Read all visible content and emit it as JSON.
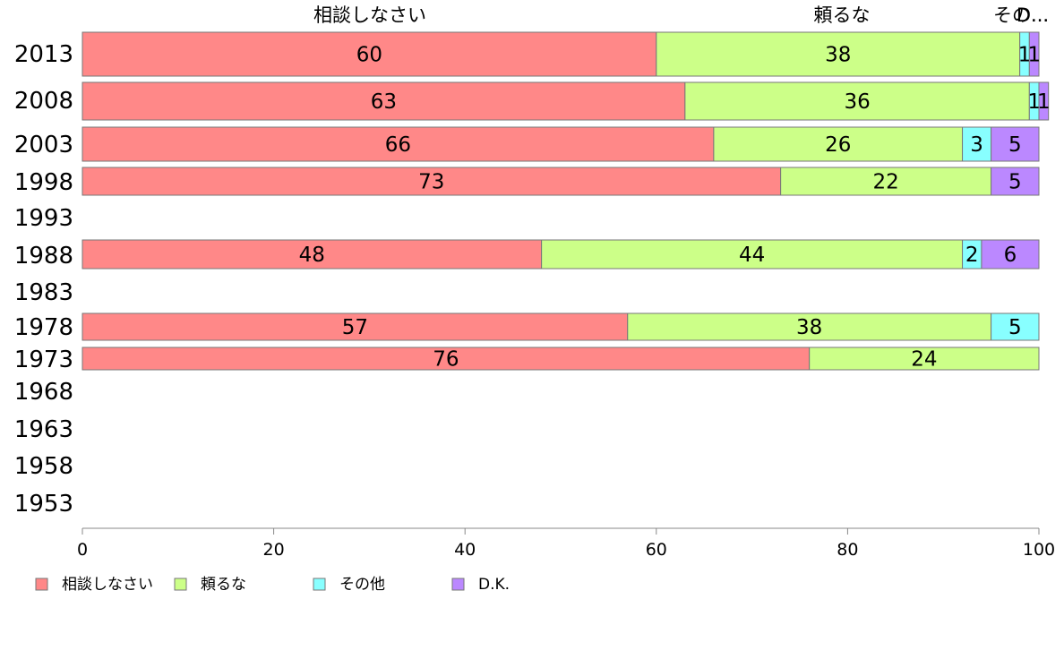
{
  "chart_data": {
    "type": "bar",
    "orientation": "horizontal",
    "stacked": true,
    "categories": [
      "2013",
      "2008",
      "2003",
      "1998",
      "1993",
      "1988",
      "1983",
      "1978",
      "1973",
      "1968",
      "1963",
      "1958",
      "1953"
    ],
    "series": [
      {
        "name": "相談しなさい",
        "color": "#ff8888",
        "values": [
          60,
          63,
          66,
          73,
          null,
          48,
          null,
          57,
          76,
          null,
          null,
          null,
          null
        ]
      },
      {
        "name": "頼るな",
        "color": "#ccff88",
        "values": [
          38,
          36,
          26,
          22,
          null,
          44,
          null,
          38,
          24,
          null,
          null,
          null,
          null
        ]
      },
      {
        "name": "その他",
        "color": "#88ffff",
        "values": [
          1,
          1,
          3,
          0,
          null,
          2,
          null,
          5,
          0,
          null,
          null,
          null,
          null
        ]
      },
      {
        "name": "D.K.",
        "color": "#bb88ff",
        "values": [
          1,
          1,
          5,
          5,
          null,
          6,
          null,
          0,
          0,
          null,
          null,
          null,
          null
        ]
      }
    ],
    "xlim": [
      0,
      100
    ],
    "xticks": [
      "0",
      "20",
      "40",
      "60",
      "80",
      "100"
    ],
    "top_labels": [
      "相談しなさい",
      "頼るな",
      "その...",
      "D..."
    ],
    "legend_position": "bottom-left",
    "grid": false
  }
}
